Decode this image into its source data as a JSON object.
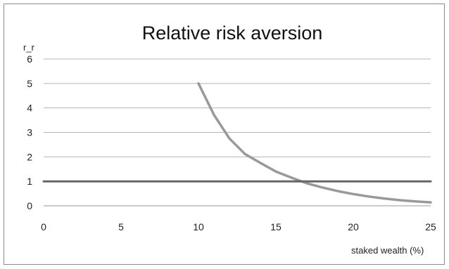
{
  "chart_data": {
    "type": "line",
    "title": "Relative risk aversion",
    "xlabel": "staked wealth (%)",
    "ylabel": "r_r",
    "xlim": [
      0,
      25
    ],
    "ylim": [
      0,
      6
    ],
    "x_ticks": [
      "0",
      "5",
      "10",
      "15",
      "20",
      "25"
    ],
    "y_ticks": [
      "0",
      "1",
      "2",
      "3",
      "4",
      "5",
      "6"
    ],
    "grid": "horizontal",
    "legend": "none",
    "series": [
      {
        "color": "#999999",
        "x": [
          10,
          11,
          12,
          13,
          14,
          15,
          16,
          17,
          18,
          19,
          20,
          21,
          22,
          23,
          24,
          25
        ],
        "y": [
          5.0,
          3.72,
          2.75,
          2.12,
          1.75,
          1.4,
          1.15,
          0.92,
          0.75,
          0.6,
          0.48,
          0.38,
          0.3,
          0.23,
          0.18,
          0.14
        ]
      },
      {
        "color": "#666666",
        "x": [
          0,
          25
        ],
        "y": [
          1,
          1
        ]
      }
    ]
  }
}
